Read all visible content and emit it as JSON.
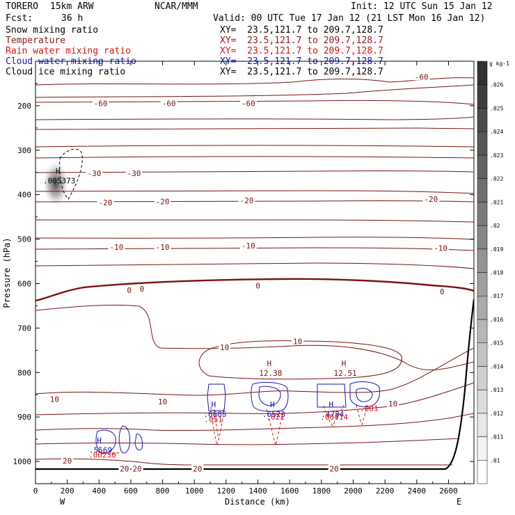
{
  "header": {
    "model": "TORERO",
    "resolution": "15km ARW",
    "center": "NCAR/MMM",
    "init": "Init: 12 UTC Sun 15 Jan 12",
    "fcst_label": "Fcst:",
    "fcst_value": "36 h",
    "valid": "Valid: 00 UTC Tue 17 Jan 12 (21 LST Mon 16 Jan 12)"
  },
  "legend": [
    {
      "label": "Snow mixing ratio",
      "xy": "XY=  23.5,121.7 to 209.7,128.7",
      "color": "#000000"
    },
    {
      "label": "Temperature",
      "xy": "XY=  23.5,121.7 to 209.7,128.7",
      "color": "#8b1a1a"
    },
    {
      "label": "Rain water mixing ratio",
      "xy": "XY=  23.5,121.7 to 209.7,128.7",
      "color": "#dd1111"
    },
    {
      "label": "Cloud water mixing ratio",
      "xy": "XY=  23.5,121.7 to 209.7,128.7",
      "color": "#1515b4"
    },
    {
      "label": "Cloud ice mixing ratio",
      "xy": "XY=  23.5,121.7 to 209.7,128.7",
      "color": "#000000"
    }
  ],
  "colors": {
    "temperature": "#7a1010",
    "rain": "#dd1111",
    "cloud_water": "#1515b4",
    "terrain": "#000000"
  },
  "chart_data": {
    "type": "cross-section contour",
    "xlabel": "Distance (km)",
    "ylabel": "Pressure (hPa)",
    "xlim": [
      0,
      2760
    ],
    "ylim": [
      1050,
      100
    ],
    "x_ticks": [
      0,
      200,
      400,
      600,
      800,
      1000,
      1200,
      1400,
      1600,
      1800,
      2000,
      2200,
      2400,
      2600
    ],
    "y_ticks": [
      200,
      300,
      400,
      500,
      600,
      700,
      800,
      900,
      1000
    ],
    "end_labels": {
      "left": "W",
      "right": "E"
    },
    "colorbar": {
      "unit": "g kg-1",
      "ticks": [
        ".01",
        ".011",
        ".012",
        ".013",
        ".014",
        ".015",
        ".016",
        ".017",
        ".018",
        ".019",
        ".02",
        ".021",
        ".022",
        ".023",
        ".024",
        ".025",
        ".026"
      ]
    },
    "temperature_labels": [
      {
        "text": "-60",
        "x": 2430,
        "p": 135
      },
      {
        "text": "-60",
        "x": 410,
        "p": 195
      },
      {
        "text": "-60",
        "x": 840,
        "p": 195
      },
      {
        "text": "-60",
        "x": 1340,
        "p": 195
      },
      {
        "text": "-30",
        "x": 370,
        "p": 352
      },
      {
        "text": "-30",
        "x": 620,
        "p": 352
      },
      {
        "text": "-20",
        "x": 440,
        "p": 418
      },
      {
        "text": "-20",
        "x": 800,
        "p": 415
      },
      {
        "text": "-20",
        "x": 1330,
        "p": 413
      },
      {
        "text": "-20",
        "x": 2490,
        "p": 410
      },
      {
        "text": "-10",
        "x": 510,
        "p": 518
      },
      {
        "text": "-10",
        "x": 800,
        "p": 518
      },
      {
        "text": "-10",
        "x": 1340,
        "p": 515
      },
      {
        "text": "-10",
        "x": 2550,
        "p": 520
      },
      {
        "text": "0",
        "x": 590,
        "p": 615
      },
      {
        "text": "0",
        "x": 670,
        "p": 612
      },
      {
        "text": "0",
        "x": 1400,
        "p": 605
      },
      {
        "text": "0",
        "x": 2560,
        "p": 618
      },
      {
        "text": "10",
        "x": 1190,
        "p": 743
      },
      {
        "text": "10",
        "x": 1650,
        "p": 730
      },
      {
        "text": "10",
        "x": 120,
        "p": 860
      },
      {
        "text": "10",
        "x": 800,
        "p": 865
      },
      {
        "text": "10",
        "x": 2250,
        "p": 870
      },
      {
        "text": "20",
        "x": 200,
        "p": 998
      },
      {
        "text": "20",
        "x": 560,
        "p": 1016
      },
      {
        "text": "20",
        "x": 640,
        "p": 1016
      },
      {
        "text": "20",
        "x": 1020,
        "p": 1016
      },
      {
        "text": "20",
        "x": 1880,
        "p": 1016
      }
    ],
    "highs": [
      {
        "label": "H",
        "value": "12.38",
        "x": 1480,
        "p": 795,
        "field": "temperature"
      },
      {
        "label": "H",
        "value": "12.51",
        "x": 1950,
        "p": 795,
        "field": "temperature"
      },
      {
        "label": "H",
        "value": ".005373",
        "x": 150,
        "p": 362,
        "field": "snow"
      },
      {
        "label": "H",
        "value": ".5569",
        "x": 410,
        "p": 968,
        "field": "cloud_water"
      },
      {
        "label": "H",
        "value": ".6605",
        "x": 1130,
        "p": 887,
        "field": "cloud_water"
      },
      {
        "label": "H",
        "value": ".6523",
        "x": 1500,
        "p": 887,
        "field": "cloud_water"
      },
      {
        "label": "H",
        "value": ".4784",
        "x": 1870,
        "p": 887,
        "field": "cloud_water"
      }
    ],
    "rain_labels": [
      {
        "text": ".00230",
        "x": 420,
        "p": 985
      },
      {
        "text": ".051",
        "x": 1120,
        "p": 905
      },
      {
        "text": ".021",
        "x": 1510,
        "p": 900
      },
      {
        "text": ".00414",
        "x": 1880,
        "p": 900
      },
      {
        "text": ".001",
        "x": 2100,
        "p": 880
      }
    ]
  }
}
